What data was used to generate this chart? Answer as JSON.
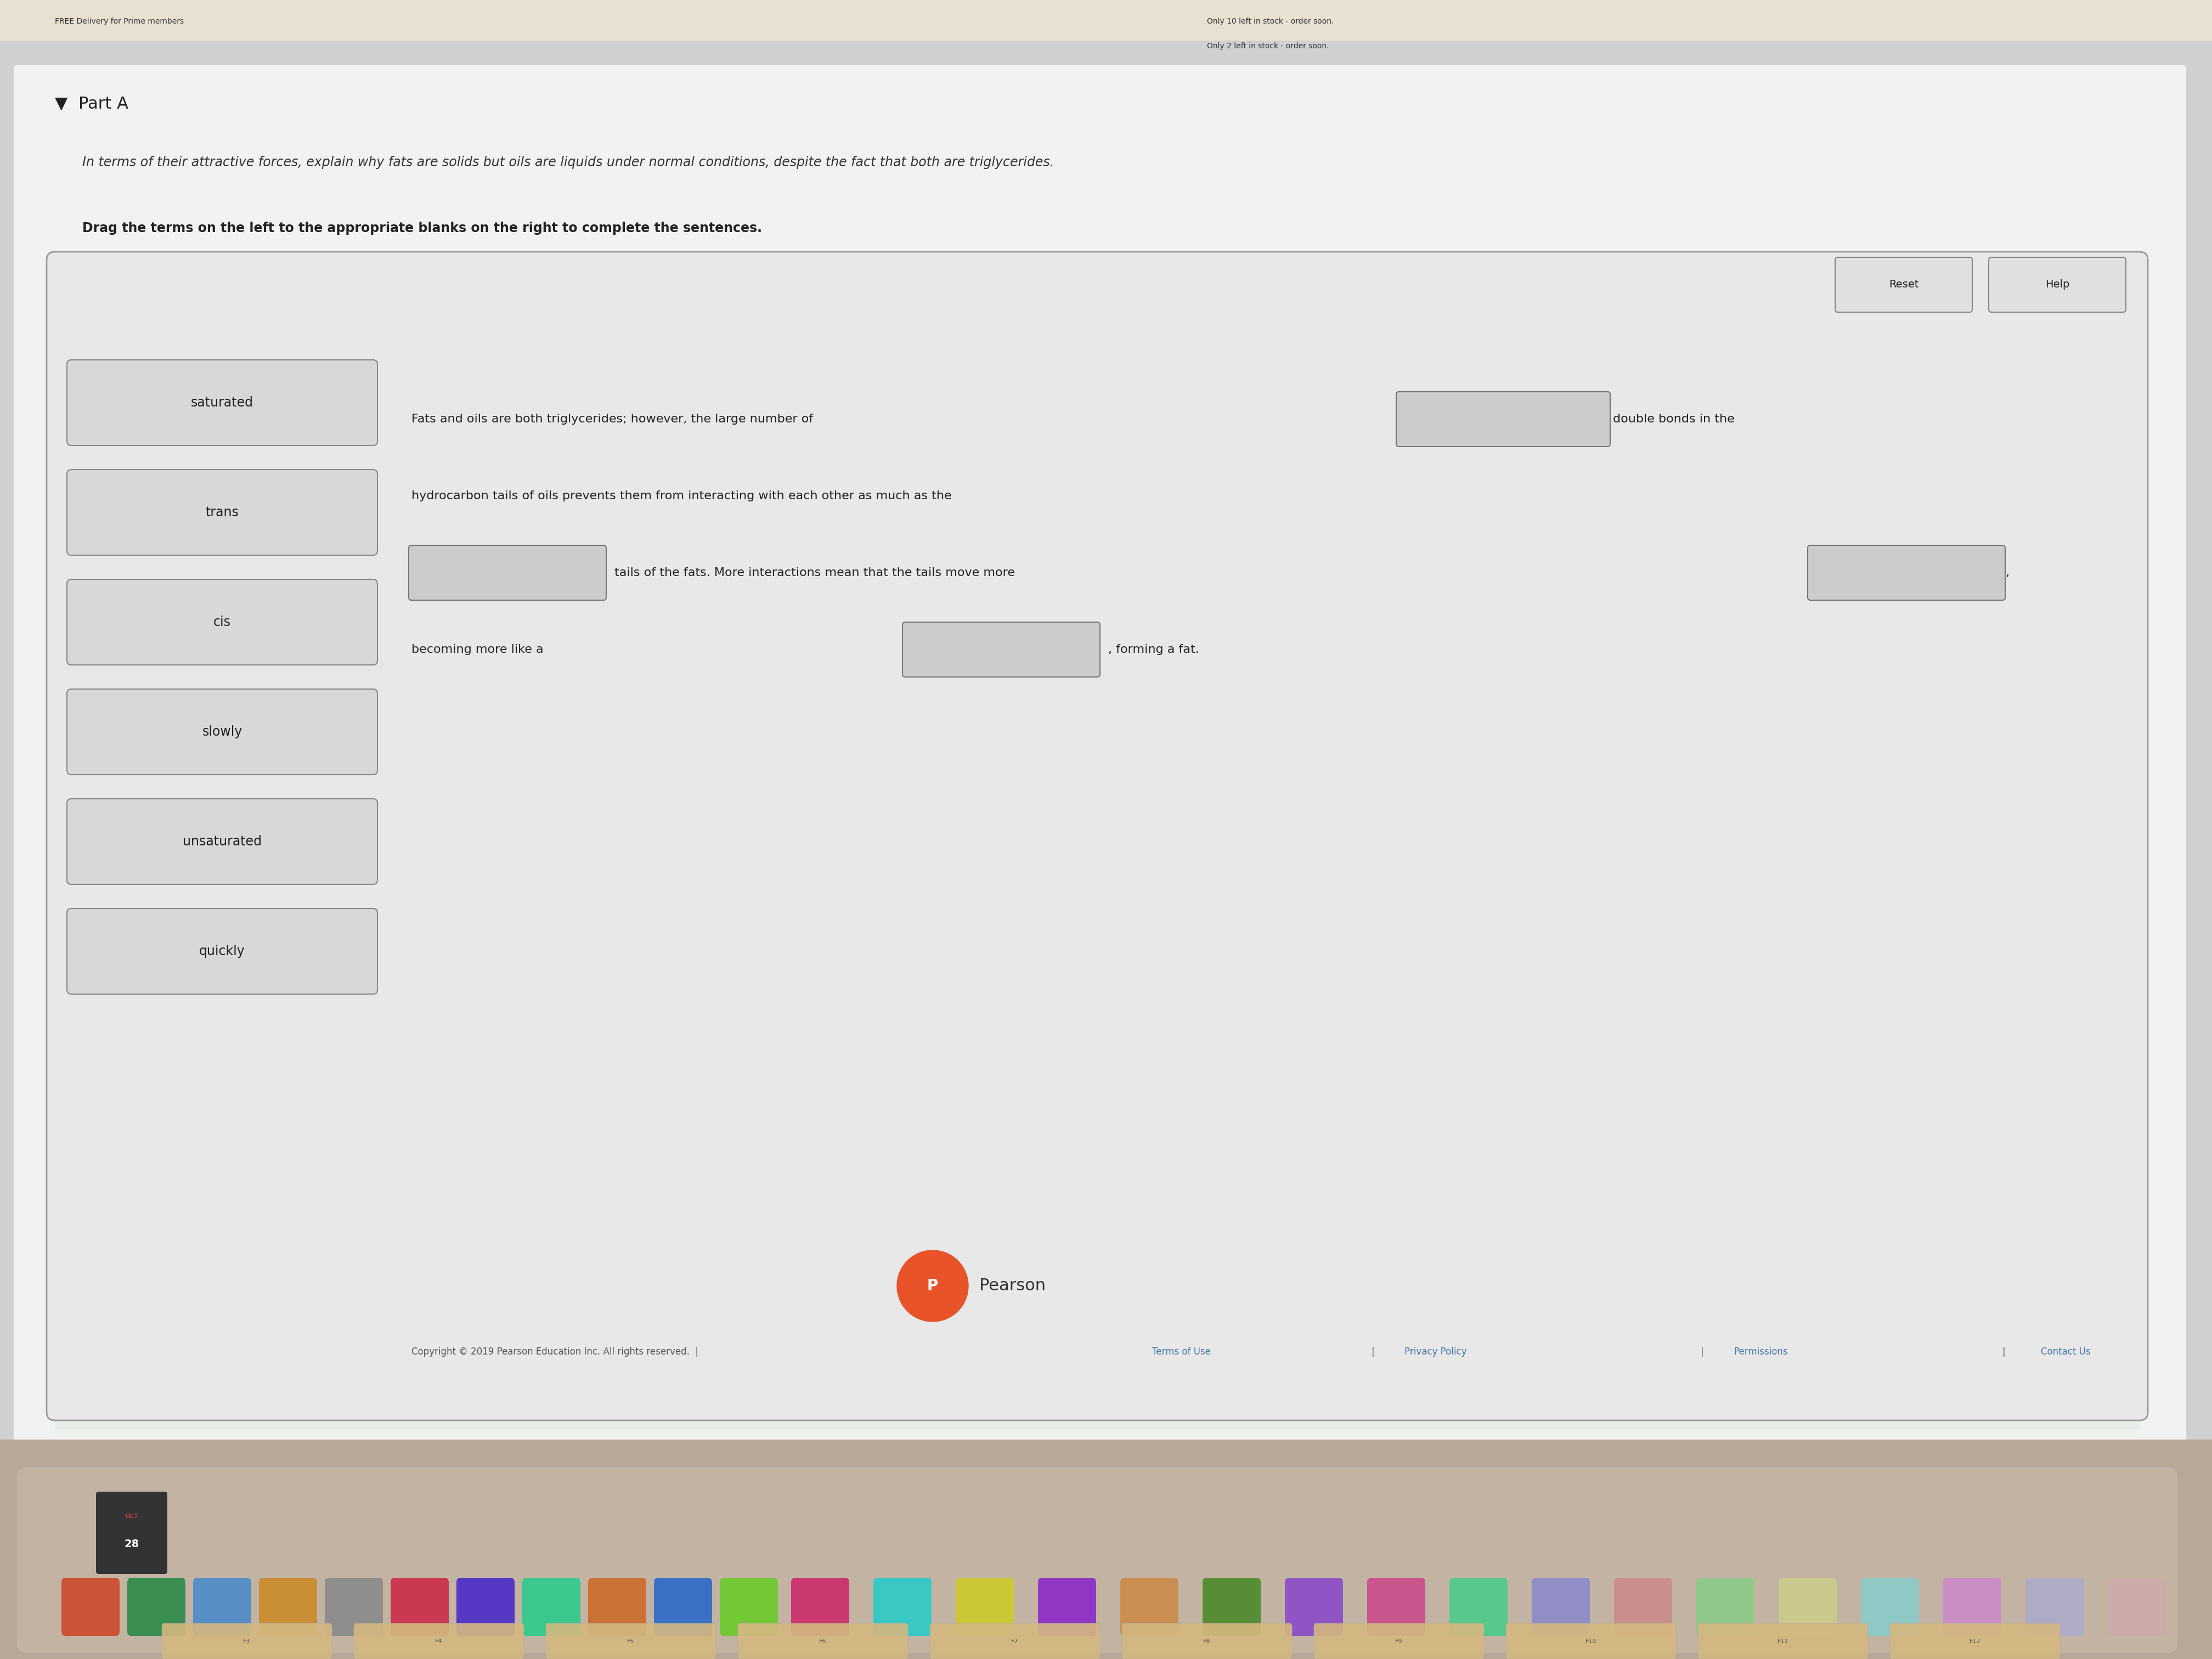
{
  "bg_color": "#e8e8e8",
  "page_bg": "#f0f0f0",
  "white_box_bg": "#f5f5f5",
  "part_a_text": "Part A",
  "italic_text": "In terms of their attractive forces, explain why fats are solids but oils are liquids under normal conditions, despite the fact that both are triglycerides.",
  "bold_text": "Drag the terms on the left to the appropriate blanks on the right to complete the sentences.",
  "left_terms": [
    "saturated",
    "trans",
    "cis",
    "slowly",
    "unsaturated",
    "quickly"
  ],
  "sentence_line1_pre": "Fats and oils are both triglycerides; however, the large number of",
  "sentence_line1_post": "double bonds in the",
  "sentence_line2": "hydrocarbon tails of oils prevents them from interacting with each other as much as the",
  "sentence_line3_pre": "tails of the fats. More interactions mean that the tails move more",
  "sentence_line3_post": ",",
  "sentence_line4_pre": "becoming more like a",
  "sentence_line4_post": ", forming a fat.",
  "reset_btn": "Reset",
  "help_btn": "Help",
  "pearson_text": "Pearson",
  "copyright_text": "Copyright © 2019 Pearson Education Inc. All rights reserved.",
  "terms_text": "Terms of Use",
  "privacy_text": "Privacy Policy",
  "permissions_text": "Permissions",
  "contact_text": "Contact Us",
  "term_box_color": "#d8d8d8",
  "term_box_border": "#888888",
  "blank_box_color": "#d0d0d0",
  "blank_box_border": "#777777",
  "outer_box_bg": "#e8e8e8",
  "outer_box_border": "#888888"
}
